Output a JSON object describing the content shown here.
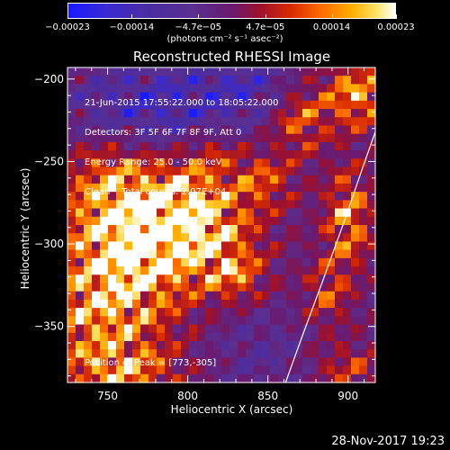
{
  "chart_data": {
    "type": "heatmap",
    "title": "Reconstructed RHESSI Image",
    "xlabel": "Heliocentric X (arcsec)",
    "ylabel": "Heliocentric Y (arcsec)",
    "xlim": [
      725,
      917
    ],
    "ylim": [
      -384,
      -193
    ],
    "x_ticks": [
      750,
      800,
      850,
      900
    ],
    "y_ticks": [
      -200,
      -250,
      -300,
      -350
    ],
    "x_tick_labels": [
      "750",
      "800",
      "850",
      "900"
    ],
    "y_tick_labels": [
      "−200",
      "−250",
      "−300",
      "−350"
    ],
    "colorbar": {
      "ticks": [
        -0.00023,
        -0.00014,
        -4.7e-05,
        4.7e-05,
        0.00014,
        0.00023
      ],
      "tick_labels": [
        "−0.00023",
        "−0.00014",
        "−4.7e−05",
        "4.7e−05",
        "0.00014",
        "0.00023"
      ],
      "unit": "(photons cm⁻² s⁻¹ asec⁻²)",
      "colormap": "blue-purple-red-yellow-white"
    },
    "annotations": [
      "21-Jun-2015 17:55:22.000 to 18:05:22.000",
      "Detectors: 3F 5F 6F 7F 8F 9F, Att 0",
      "Energy Range: 25.0 - 50.0 keV",
      "Clean    Total counts: 2.07E+04"
    ],
    "peak_label": "Position of Peak = [773,-305]",
    "peak": [
      773,
      -305
    ],
    "limb_arc": [
      [
        861,
        -384
      ],
      [
        871,
        -357
      ],
      [
        884,
        -323
      ],
      [
        897,
        -288
      ],
      [
        909,
        -254
      ],
      [
        917,
        -232
      ]
    ],
    "sources": [
      {
        "x": 773,
        "y": -300,
        "amp": 1.0,
        "sx": 26,
        "sy": 22
      },
      {
        "x": 747,
        "y": -340,
        "amp": 0.85,
        "sx": 28,
        "sy": 30
      },
      {
        "x": 755,
        "y": -268,
        "amp": 0.75,
        "sx": 22,
        "sy": 20
      },
      {
        "x": 815,
        "y": -295,
        "amp": 0.75,
        "sx": 20,
        "sy": 18
      },
      {
        "x": 800,
        "y": -270,
        "amp": 0.6,
        "sx": 15,
        "sy": 14
      },
      {
        "x": 760,
        "y": -378,
        "amp": 0.55,
        "sx": 22,
        "sy": 10
      },
      {
        "x": 845,
        "y": -262,
        "amp": 0.55,
        "sx": 14,
        "sy": 12
      },
      {
        "x": 830,
        "y": -320,
        "amp": 0.5,
        "sx": 12,
        "sy": 10
      },
      {
        "x": 905,
        "y": -210,
        "amp": 0.8,
        "sx": 14,
        "sy": 14
      },
      {
        "x": 870,
        "y": -225,
        "amp": 0.55,
        "sx": 12,
        "sy": 14
      },
      {
        "x": 900,
        "y": -285,
        "amp": 0.75,
        "sx": 10,
        "sy": 20
      },
      {
        "x": 887,
        "y": -330,
        "amp": 0.45,
        "sx": 10,
        "sy": 14
      },
      {
        "x": 900,
        "y": -375,
        "amp": 0.4,
        "sx": 14,
        "sy": 10
      },
      {
        "x": 813,
        "y": -245,
        "amp": 0.35,
        "sx": 12,
        "sy": 10
      },
      {
        "x": 780,
        "y": -215,
        "amp": -0.6,
        "sx": 35,
        "sy": 18
      },
      {
        "x": 835,
        "y": -205,
        "amp": -0.4,
        "sx": 20,
        "sy": 12
      },
      {
        "x": 845,
        "y": -365,
        "amp": -0.25,
        "sx": 20,
        "sy": 15
      }
    ]
  },
  "footer": {
    "date": "28-Nov-2017 19:23"
  }
}
